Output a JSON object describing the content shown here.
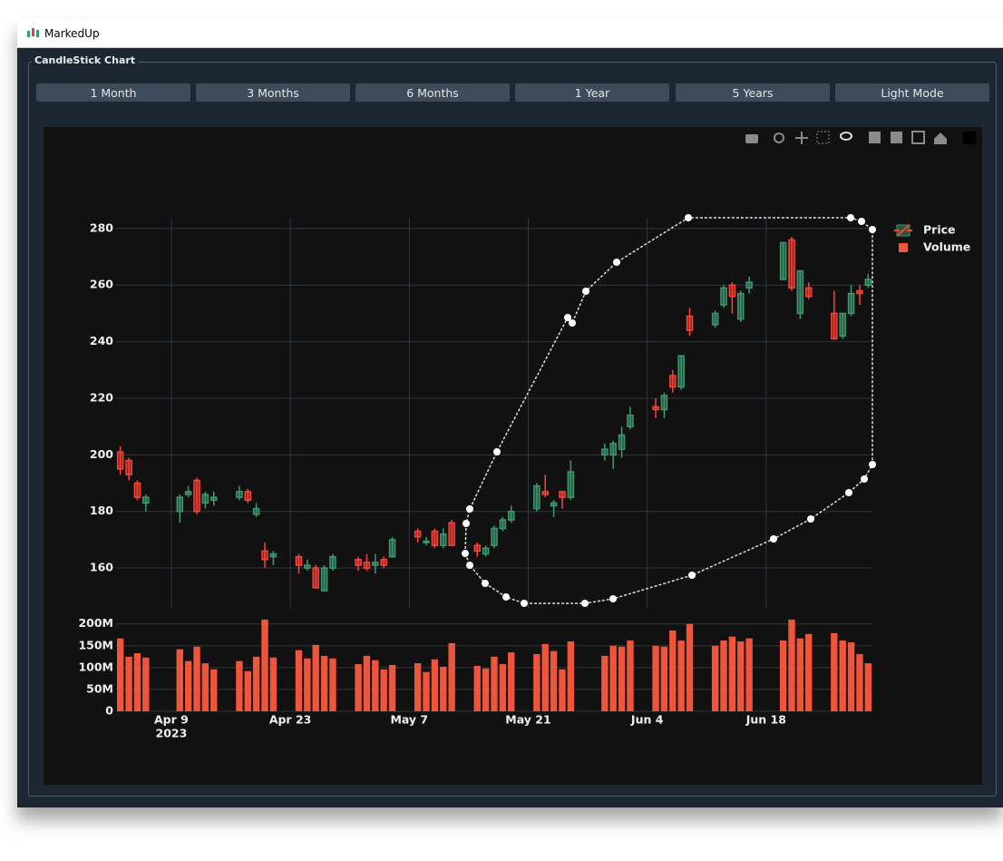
{
  "window": {
    "title": "MarkedUp"
  },
  "panel": {
    "title": "CandleStick Chart",
    "buttons": [
      "1 Month",
      "3 Months",
      "6 Months",
      "1 Year",
      "5 Years",
      "Light Mode"
    ]
  },
  "chart_data": {
    "type": "candlestick",
    "x": [
      "2023-04-03",
      "2023-04-04",
      "2023-04-05",
      "2023-04-06",
      "2023-04-10",
      "2023-04-11",
      "2023-04-12",
      "2023-04-13",
      "2023-04-14",
      "2023-04-17",
      "2023-04-18",
      "2023-04-19",
      "2023-04-20",
      "2023-04-21",
      "2023-04-24",
      "2023-04-25",
      "2023-04-26",
      "2023-04-27",
      "2023-04-28",
      "2023-05-01",
      "2023-05-02",
      "2023-05-03",
      "2023-05-04",
      "2023-05-05",
      "2023-05-08",
      "2023-05-09",
      "2023-05-10",
      "2023-05-11",
      "2023-05-12",
      "2023-05-15",
      "2023-05-16",
      "2023-05-17",
      "2023-05-18",
      "2023-05-19",
      "2023-05-22",
      "2023-05-23",
      "2023-05-24",
      "2023-05-25",
      "2023-05-26",
      "2023-05-30",
      "2023-05-31",
      "2023-06-01",
      "2023-06-02",
      "2023-06-05",
      "2023-06-06",
      "2023-06-07",
      "2023-06-08",
      "2023-06-09",
      "2023-06-12",
      "2023-06-13",
      "2023-06-14",
      "2023-06-15",
      "2023-06-16",
      "2023-06-20",
      "2023-06-21",
      "2023-06-22",
      "2023-06-23",
      "2023-06-26",
      "2023-06-27",
      "2023-06-28",
      "2023-06-29",
      "2023-06-30"
    ],
    "xlim": [
      "2023-04-02T12:00:00Z",
      "2023-06-30T12:00:00Z"
    ],
    "xticks": [
      {
        "value": "2023-04-09",
        "label": "Apr 9"
      },
      {
        "value": "2023-04-23",
        "label": "Apr 23"
      },
      {
        "value": "2023-05-07",
        "label": "May 7"
      },
      {
        "value": "2023-05-21",
        "label": "May 21"
      },
      {
        "value": "2023-06-04",
        "label": "Jun 4"
      },
      {
        "value": "2023-06-18",
        "label": "Jun 18"
      }
    ],
    "x_year": "2023",
    "ylim": [
      145.6,
      283.8
    ],
    "yticks": [
      160,
      180,
      200,
      220,
      240,
      260,
      280
    ],
    "y2lim": [
      0,
      216000000
    ],
    "y2ticks": [
      0,
      {
        "value": 50000000,
        "label": "50M"
      },
      {
        "value": 100000000,
        "label": "100M"
      },
      {
        "value": 150000000,
        "label": "150M"
      },
      {
        "value": 200000000,
        "label": "200M"
      }
    ],
    "grid": true,
    "legend": "top-right",
    "series": [
      {
        "name": "Price",
        "type": "candlestick",
        "increasing_color": "#3D9970",
        "decreasing_color": "#FF4136",
        "open": [
          201,
          198,
          190,
          183,
          180,
          186,
          191,
          183,
          184,
          185,
          187,
          179,
          166,
          164,
          164,
          160,
          160,
          152,
          160,
          163,
          162,
          161,
          163,
          164,
          173,
          169,
          173,
          168,
          176,
          168,
          165,
          168,
          174,
          177,
          181,
          187,
          182,
          187,
          185,
          200,
          200,
          202,
          210,
          217,
          216,
          228,
          224,
          249,
          246,
          253,
          260,
          248,
          259,
          262,
          276,
          250,
          259,
          250,
          242,
          250,
          258,
          260
        ],
        "high": [
          203,
          199,
          191,
          186,
          186,
          189,
          192,
          187,
          187,
          189,
          188,
          183,
          169,
          166,
          165,
          163,
          161,
          161,
          165,
          164,
          165,
          165,
          164,
          171,
          174,
          171,
          174,
          174,
          177,
          169,
          168,
          175,
          178,
          182,
          190,
          193,
          184,
          187,
          198,
          204,
          205,
          210,
          217,
          220,
          222,
          230,
          235,
          252,
          251,
          260,
          261,
          258,
          263,
          275,
          277,
          265,
          261,
          258,
          250,
          260,
          260,
          264
        ],
        "low": [
          193,
          191,
          184,
          180,
          176,
          185,
          179,
          181,
          182,
          184,
          183,
          178,
          160,
          161,
          158,
          159,
          153,
          152,
          159,
          159,
          159,
          158,
          160,
          164,
          169,
          168,
          167,
          167,
          168,
          164,
          164,
          167,
          173,
          176,
          180,
          185,
          178,
          181,
          184,
          198,
          195,
          199,
          209,
          213,
          213,
          222,
          223,
          242,
          245,
          252,
          250,
          247,
          257,
          262,
          258,
          248,
          255,
          241,
          241,
          249,
          253,
          259
        ],
        "close": [
          195,
          193,
          185,
          185,
          185,
          187,
          180,
          186,
          185,
          187,
          184,
          181,
          163,
          165,
          161,
          161,
          153,
          160,
          164,
          161,
          160,
          162,
          161,
          170,
          171,
          169.5,
          168,
          172,
          168,
          166,
          167,
          174,
          177,
          180,
          189,
          186,
          183,
          185,
          194,
          202,
          204,
          207,
          214,
          216,
          221,
          224,
          235,
          244,
          250,
          259,
          256,
          257,
          261,
          275,
          259,
          265,
          256,
          241,
          250,
          257,
          257,
          262
        ]
      },
      {
        "name": "Volume",
        "type": "bar",
        "axis": "y2",
        "color": "#EF553B",
        "values": [
          167000000,
          125000000,
          133000000,
          123000000,
          142000000,
          115000000,
          148000000,
          110000000,
          96000000,
          115000000,
          92000000,
          125000000,
          210000000,
          123000000,
          140000000,
          121000000,
          152000000,
          127000000,
          121000000,
          108000000,
          127000000,
          117000000,
          96000000,
          106000000,
          110000000,
          90000000,
          119000000,
          102000000,
          156000000,
          104000000,
          98000000,
          125000000,
          108000000,
          135000000,
          131000000,
          154000000,
          138000000,
          96000000,
          160000000,
          127000000,
          150000000,
          148000000,
          162000000,
          150000000,
          148000000,
          185000000,
          162000000,
          200000000,
          150000000,
          162000000,
          171000000,
          160000000,
          167000000,
          162000000,
          210000000,
          167000000,
          177000000,
          179000000,
          162000000,
          158000000,
          131000000,
          110000000
        ]
      }
    ]
  }
}
